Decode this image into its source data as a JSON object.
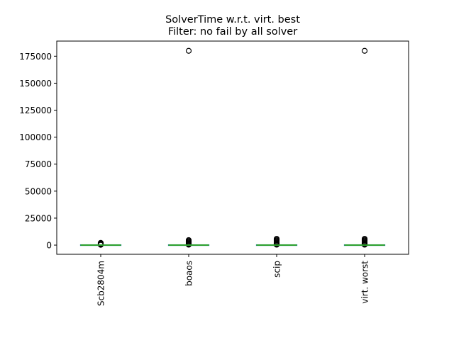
{
  "chart_data": {
    "type": "box",
    "title_lines": [
      "SolverTime w.r.t. virt. best",
      "Filter: no fail by all solver"
    ],
    "categories": [
      "Scb2804m",
      "boaos",
      "scip",
      "virt. worst"
    ],
    "ylim": [
      -8500,
      189000
    ],
    "yticks": [
      0,
      25000,
      50000,
      75000,
      100000,
      125000,
      150000,
      175000
    ],
    "grid": false,
    "boxes": [
      {
        "category": "Scb2804m",
        "whisker_low": 0,
        "q1": 0,
        "median": 0,
        "q3": 0,
        "whisker_high": 0,
        "fliers": [
          300,
          600,
          900,
          1300,
          1700,
          2100
        ]
      },
      {
        "category": "boaos",
        "whisker_low": 0,
        "q1": 0,
        "median": 0,
        "q3": 0,
        "whisker_high": 0,
        "fliers": [
          400,
          900,
          1500,
          2200,
          3000,
          3800,
          4600,
          180000
        ]
      },
      {
        "category": "scip",
        "whisker_low": 0,
        "q1": 0,
        "median": 0,
        "q3": 0,
        "whisker_high": 0,
        "fliers": [
          400,
          1000,
          1700,
          2500,
          3300,
          4200,
          5100,
          5800
        ]
      },
      {
        "category": "virt. worst",
        "whisker_low": 0,
        "q1": 0,
        "median": 0,
        "q3": 0,
        "whisker_high": 0,
        "fliers": [
          400,
          1000,
          1700,
          2500,
          3300,
          4200,
          5100,
          5800,
          180000
        ]
      }
    ]
  }
}
